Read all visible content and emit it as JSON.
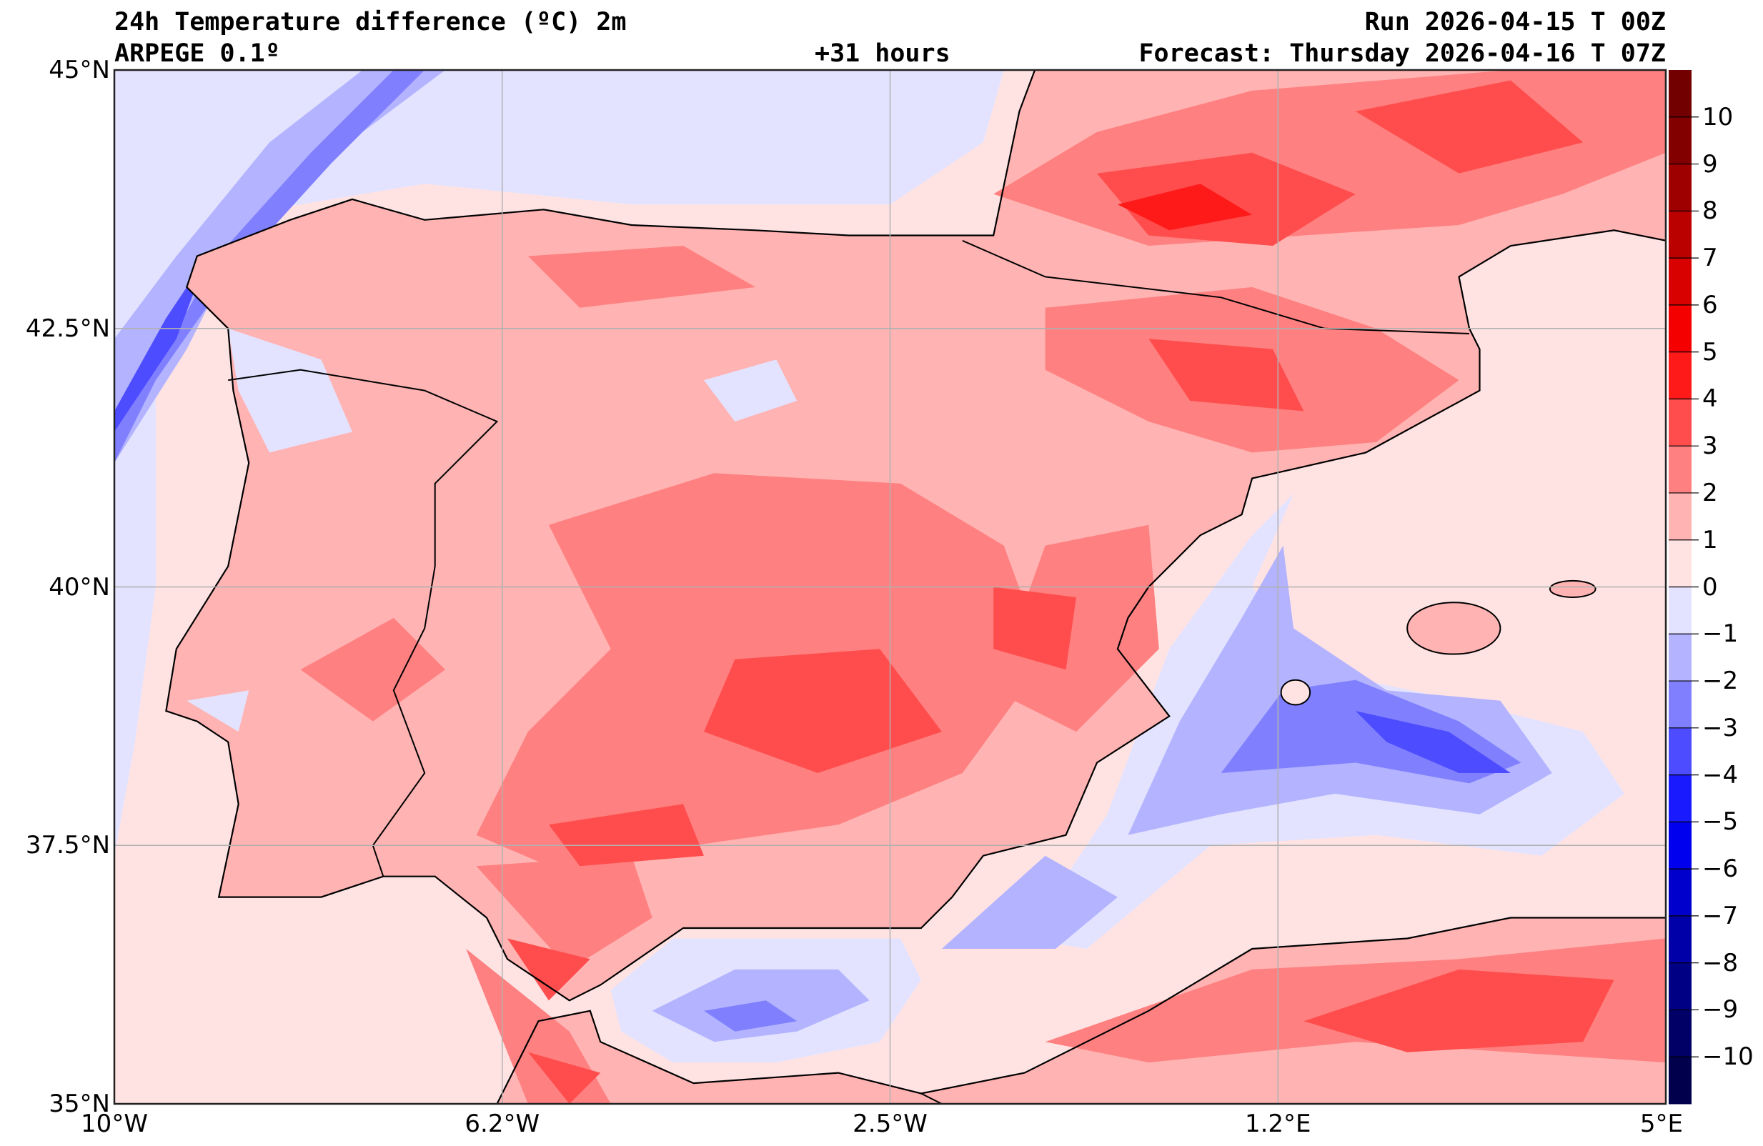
{
  "header": {
    "title": "24h Temperature difference (ºC) 2m",
    "model": "ARPEGE 0.1º",
    "lead": "+31 hours",
    "run": "Run 2026-04-15 T 00Z",
    "forecast": "Forecast: Thursday 2026-04-16 T 07Z"
  },
  "axes": {
    "x_ticks": [
      "10°W",
      "6.2°W",
      "2.5°W",
      "1.2°E",
      "5°E"
    ],
    "x_values": [
      -10,
      -6.25,
      -2.5,
      1.25,
      5
    ],
    "y_ticks": [
      "45°N",
      "42.5°N",
      "40°N",
      "37.5°N",
      "35°N"
    ],
    "y_values": [
      45,
      42.5,
      40,
      37.5,
      35
    ],
    "lon_range": [
      -10,
      5
    ],
    "lat_range": [
      35,
      45
    ]
  },
  "colorbar": {
    "labels": [
      "10",
      "9",
      "8",
      "7",
      "6",
      "5",
      "4",
      "3",
      "2",
      "1",
      "0",
      "−1",
      "−2",
      "−3",
      "−4",
      "−5",
      "−6",
      "−7",
      "−8",
      "−9",
      "−10"
    ],
    "range": [
      -11,
      11
    ],
    "colors_top_to_bottom": [
      "#720000",
      "#820000",
      "#9e0000",
      "#bb0000",
      "#d90000",
      "#f50000",
      "#ff1a1a",
      "#ff4d4d",
      "#ff8080",
      "#ffb3b3",
      "#ffe3e3",
      "#e3e3ff",
      "#b3b3ff",
      "#8080ff",
      "#4d4dff",
      "#1a1aff",
      "#0000ee",
      "#0000cc",
      "#0000a8",
      "#000085",
      "#000066",
      "#00004d"
    ]
  }
}
